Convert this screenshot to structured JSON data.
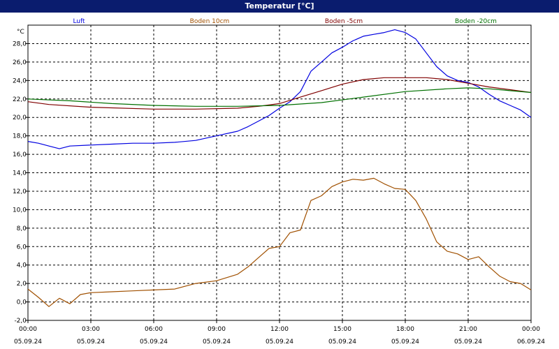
{
  "window": {
    "title": "Temperatur [°C]"
  },
  "chart_data": {
    "type": "line",
    "ylabel": "°C",
    "ylim": [
      -2,
      30
    ],
    "y_ticks": [
      "-2,0",
      "0,0",
      "2,0",
      "4,0",
      "6,0",
      "8,0",
      "10,0",
      "12,0",
      "14,0",
      "16,0",
      "18,0",
      "20,0",
      "22,0",
      "24,0",
      "26,0",
      "28,0"
    ],
    "x_range_hours": [
      0,
      24
    ],
    "x_ticks": [
      {
        "time": "00:00",
        "date": "05.09.24"
      },
      {
        "time": "03:00",
        "date": "05.09.24"
      },
      {
        "time": "06:00",
        "date": "05.09.24"
      },
      {
        "time": "09:00",
        "date": "05.09.24"
      },
      {
        "time": "12:00",
        "date": "05.09.24"
      },
      {
        "time": "15:00",
        "date": "05.09.24"
      },
      {
        "time": "18:00",
        "date": "05.09.24"
      },
      {
        "time": "21:00",
        "date": "05.09.24"
      },
      {
        "time": "00:00",
        "date": "06.09.24"
      }
    ],
    "grid": true,
    "legend_position": "top",
    "series": [
      {
        "name": "Luft",
        "color": "#0000e0",
        "x": [
          "00:00",
          "00:30",
          "01:00",
          "01:30",
          "02:00",
          "03:00",
          "04:00",
          "05:00",
          "06:00",
          "07:00",
          "08:00",
          "09:00",
          "10:00",
          "10:30",
          "11:00",
          "11:30",
          "12:00",
          "12:30",
          "13:00",
          "13:30",
          "14:00",
          "14:30",
          "15:00",
          "15:30",
          "16:00",
          "16:30",
          "17:00",
          "17:30",
          "18:00",
          "18:30",
          "19:00",
          "19:30",
          "20:00",
          "20:30",
          "21:00",
          "21:30",
          "22:00",
          "22:30",
          "23:00",
          "23:30",
          "24:00"
        ],
        "values": [
          17.4,
          17.2,
          16.9,
          16.6,
          16.9,
          17.0,
          17.1,
          17.2,
          17.2,
          17.3,
          17.5,
          18.0,
          18.5,
          19.0,
          19.6,
          20.2,
          21.0,
          21.7,
          22.8,
          25.0,
          26.0,
          27.0,
          27.6,
          28.3,
          28.8,
          29.0,
          29.2,
          29.5,
          29.2,
          28.5,
          27.0,
          25.5,
          24.5,
          24.0,
          23.8,
          23.3,
          22.5,
          21.8,
          21.3,
          20.8,
          20.0
        ]
      },
      {
        "name": "Boden 10cm",
        "color": "#a05000",
        "x": [
          "00:00",
          "00:30",
          "01:00",
          "01:30",
          "02:00",
          "02:30",
          "03:00",
          "04:00",
          "05:00",
          "06:00",
          "07:00",
          "08:00",
          "09:00",
          "10:00",
          "10:30",
          "11:00",
          "11:30",
          "12:00",
          "12:30",
          "13:00",
          "13:30",
          "14:00",
          "14:30",
          "15:00",
          "15:30",
          "16:00",
          "16:30",
          "17:00",
          "17:30",
          "18:00",
          "18:30",
          "19:00",
          "19:30",
          "20:00",
          "20:30",
          "21:00",
          "21:30",
          "22:00",
          "22:30",
          "23:00",
          "23:30",
          "24:00"
        ],
        "values": [
          1.4,
          0.5,
          -0.5,
          0.4,
          -0.2,
          0.8,
          1.0,
          1.1,
          1.2,
          1.3,
          1.4,
          2.0,
          2.3,
          3.0,
          3.8,
          4.8,
          5.8,
          6.0,
          7.5,
          7.8,
          11.0,
          11.5,
          12.5,
          13.0,
          13.3,
          13.2,
          13.4,
          12.8,
          12.3,
          12.2,
          11.0,
          9.0,
          6.5,
          5.5,
          5.2,
          4.6,
          4.9,
          3.8,
          2.8,
          2.2,
          2.0,
          1.3
        ]
      },
      {
        "name": "Boden -5cm",
        "color": "#800000",
        "x": [
          "00:00",
          "01:00",
          "03:00",
          "06:00",
          "08:00",
          "10:00",
          "11:00",
          "12:00",
          "13:00",
          "14:00",
          "15:00",
          "16:00",
          "17:00",
          "18:00",
          "19:00",
          "20:00",
          "21:00",
          "22:00",
          "23:00",
          "24:00"
        ],
        "values": [
          21.7,
          21.4,
          21.1,
          20.9,
          20.9,
          21.0,
          21.2,
          21.5,
          22.2,
          22.9,
          23.6,
          24.1,
          24.3,
          24.3,
          24.3,
          24.1,
          23.7,
          23.3,
          23.0,
          22.7
        ]
      },
      {
        "name": "Boden -20cm",
        "color": "#007000",
        "x": [
          "00:00",
          "02:00",
          "04:00",
          "06:00",
          "08:00",
          "10:00",
          "12:00",
          "14:00",
          "16:00",
          "18:00",
          "20:00",
          "21:00",
          "22:00",
          "23:00",
          "24:00"
        ],
        "values": [
          22.0,
          21.8,
          21.5,
          21.3,
          21.2,
          21.2,
          21.3,
          21.6,
          22.2,
          22.8,
          23.1,
          23.2,
          23.1,
          22.9,
          22.7
        ]
      }
    ]
  }
}
